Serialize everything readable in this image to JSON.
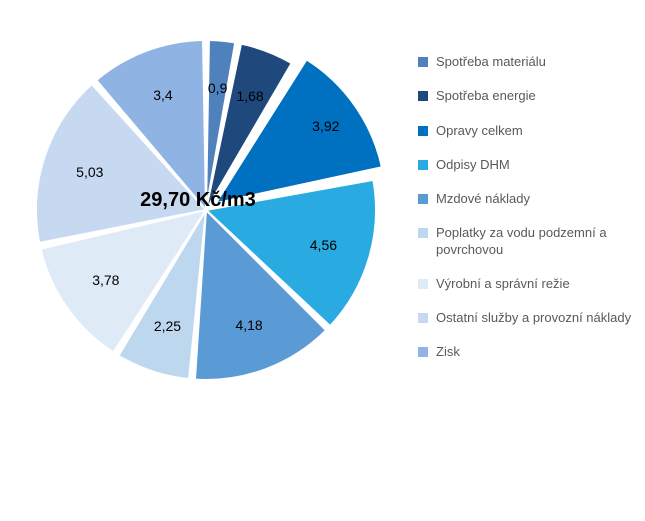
{
  "chart": {
    "type": "pie",
    "center_text": "29,70 Kč/m3",
    "center_fontsize": 20,
    "center_fontweight": "700",
    "background_color": "#ffffff",
    "radius": 170,
    "inner_gap_color": "#ffffff",
    "slice_gap_deg": 2,
    "start_angle_deg": -90,
    "label_fontsize": 14,
    "label_color": "#000000",
    "legend_fontsize": 13,
    "legend_color": "#595959",
    "slices": [
      {
        "label": "Spotřeba materiálu",
        "value": 0.9,
        "display": "0,9",
        "color": "#4f81bd"
      },
      {
        "label": "Spotřeba energie",
        "value": 1.68,
        "display": "1,68",
        "color": "#1f497d"
      },
      {
        "label": "Opravy celkem",
        "value": 3.92,
        "display": "3,92",
        "color": "#0070c0",
        "explode": 0.07
      },
      {
        "label": "Odpisy DHM",
        "value": 4.56,
        "display": "4,56",
        "color": "#29abe2"
      },
      {
        "label": "Mzdové náklady",
        "value": 4.18,
        "display": "4,18",
        "color": "#5b9bd5"
      },
      {
        "label": "Poplatky za vodu podzemní a povrchovou",
        "value": 2.25,
        "display": "2,25",
        "color": "#bdd7ee"
      },
      {
        "label": "Výrobní a správní režie",
        "value": 3.78,
        "display": "3,78",
        "color": "#deebf7"
      },
      {
        "label": "Ostatní služby a provozní náklady",
        "value": 5.03,
        "display": "5,03",
        "color": "#c7d9f1"
      },
      {
        "label": "Zisk",
        "value": 3.4,
        "display": "3,4",
        "color": "#8fb4e3"
      }
    ]
  }
}
